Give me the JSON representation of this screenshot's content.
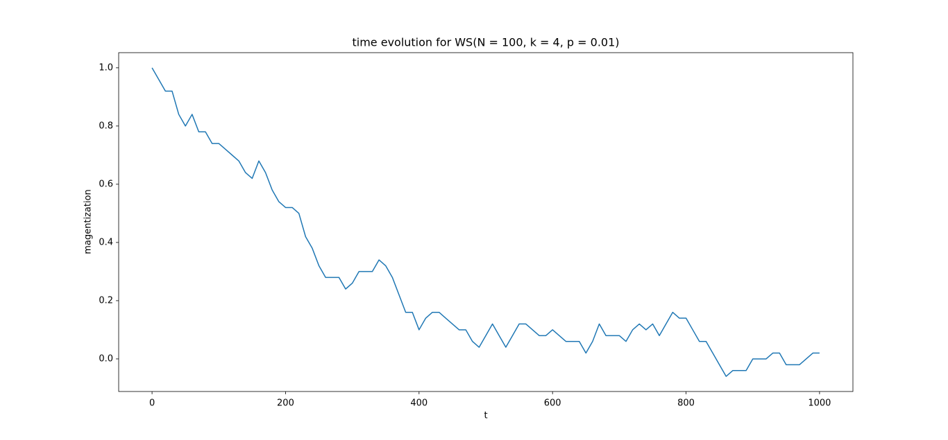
{
  "chart_data": {
    "type": "line",
    "title": "time evolution for WS(N = 100, k = 4, p = 0.01)",
    "x_label": "t",
    "y_label": "magentization",
    "x": [
      0,
      10,
      20,
      30,
      40,
      50,
      60,
      70,
      80,
      90,
      100,
      110,
      120,
      130,
      140,
      150,
      160,
      170,
      180,
      190,
      200,
      210,
      220,
      230,
      240,
      250,
      260,
      270,
      280,
      290,
      300,
      310,
      320,
      330,
      340,
      350,
      360,
      370,
      380,
      390,
      400,
      410,
      420,
      430,
      440,
      450,
      460,
      470,
      480,
      490,
      500,
      510,
      520,
      530,
      540,
      550,
      560,
      570,
      580,
      590,
      600,
      610,
      620,
      630,
      640,
      650,
      660,
      670,
      680,
      690,
      700,
      710,
      720,
      730,
      740,
      750,
      760,
      770,
      780,
      790,
      800,
      810,
      820,
      830,
      840,
      850,
      860,
      870,
      880,
      890,
      900,
      910,
      920,
      930,
      940,
      950,
      960,
      970,
      980,
      990,
      1000
    ],
    "series": [
      {
        "name": "magentization",
        "color": "#1f77b4",
        "values": [
          1.0,
          0.96,
          0.92,
          0.92,
          0.84,
          0.8,
          0.84,
          0.78,
          0.78,
          0.74,
          0.74,
          0.72,
          0.7,
          0.68,
          0.64,
          0.62,
          0.68,
          0.64,
          0.58,
          0.54,
          0.52,
          0.52,
          0.5,
          0.42,
          0.38,
          0.32,
          0.28,
          0.28,
          0.28,
          0.24,
          0.26,
          0.3,
          0.3,
          0.3,
          0.34,
          0.32,
          0.28,
          0.22,
          0.16,
          0.16,
          0.1,
          0.14,
          0.16,
          0.16,
          0.14,
          0.12,
          0.1,
          0.1,
          0.06,
          0.04,
          0.08,
          0.12,
          0.08,
          0.04,
          0.08,
          0.12,
          0.12,
          0.1,
          0.08,
          0.08,
          0.1,
          0.08,
          0.06,
          0.06,
          0.06,
          0.02,
          0.06,
          0.12,
          0.08,
          0.08,
          0.08,
          0.06,
          0.1,
          0.12,
          0.1,
          0.12,
          0.08,
          0.12,
          0.16,
          0.14,
          0.14,
          0.1,
          0.06,
          0.06,
          0.02,
          -0.02,
          -0.06,
          -0.04,
          -0.04,
          -0.04,
          0.0,
          0.0,
          0.0,
          0.02,
          0.02,
          -0.02,
          -0.02,
          -0.02,
          0.0,
          0.02,
          0.02
        ]
      }
    ],
    "xlim": [
      -50,
      1050
    ],
    "ylim": [
      -0.112,
      1.052
    ],
    "xticks": [
      0,
      200,
      400,
      600,
      800,
      1000
    ],
    "yticks": [
      {
        "value": 0,
        "label": "0.0"
      },
      0.2,
      0.4,
      0.6,
      0.8,
      {
        "value": 1,
        "label": "1.0"
      }
    ],
    "grid": false
  }
}
